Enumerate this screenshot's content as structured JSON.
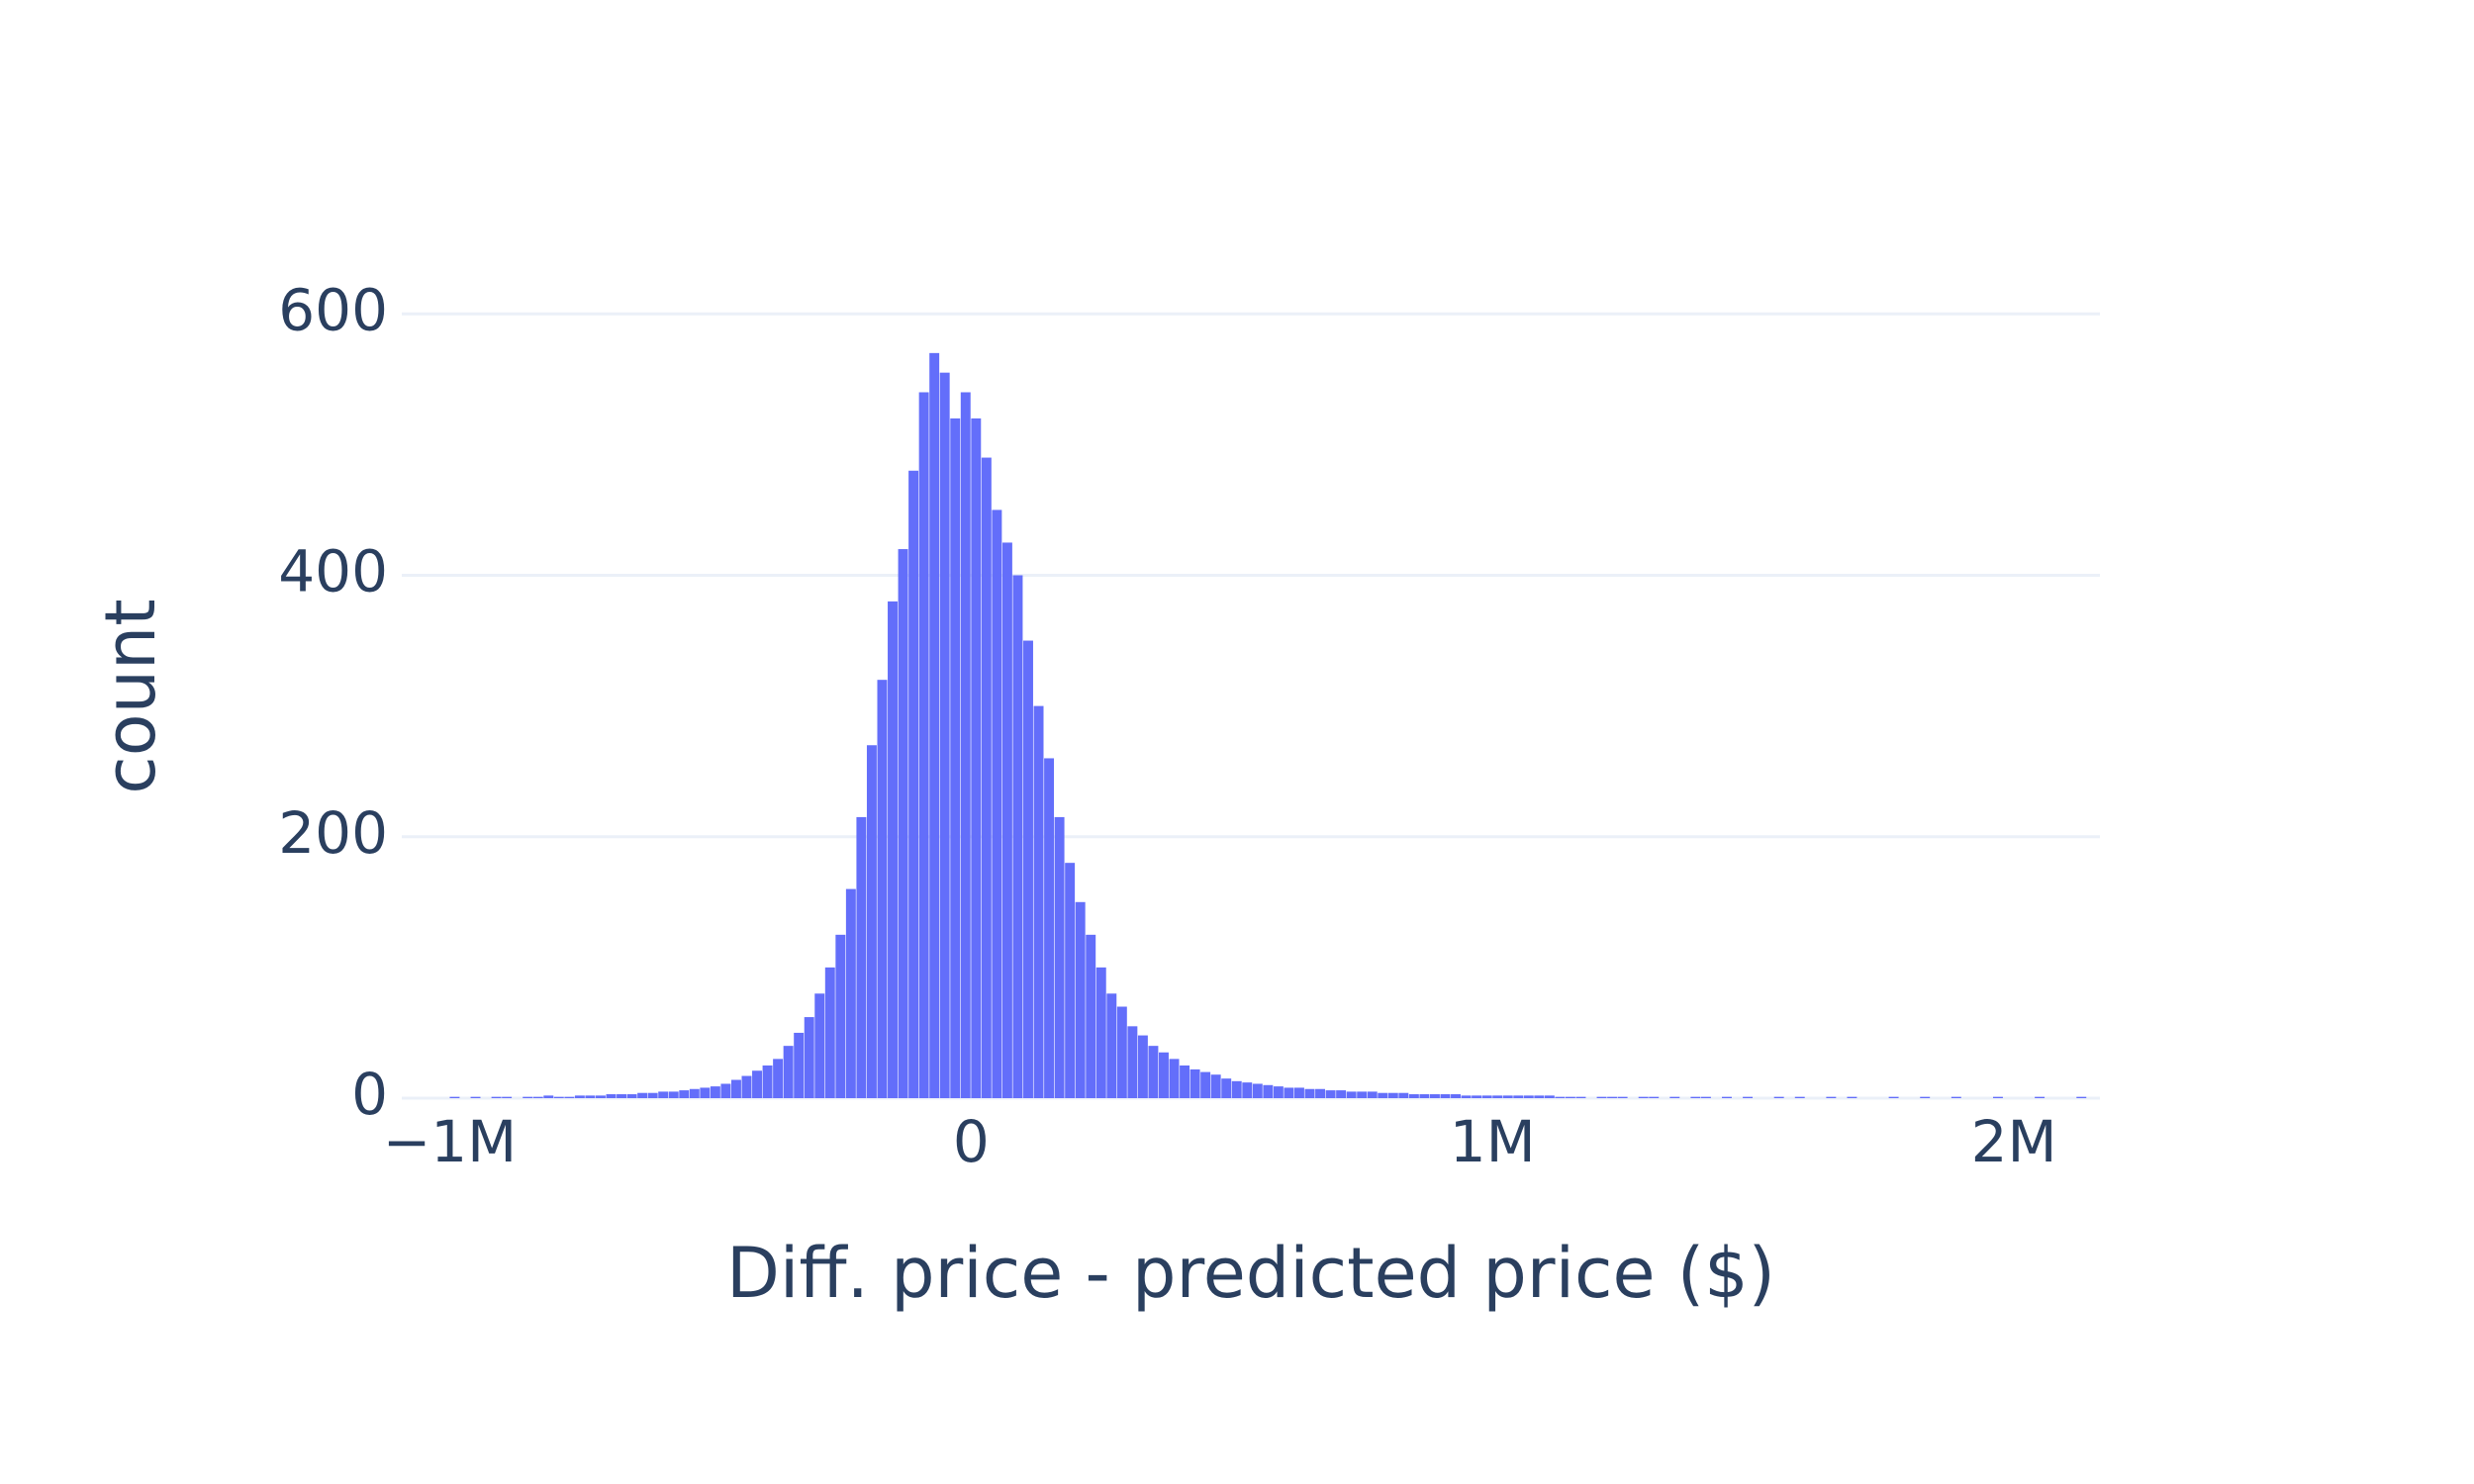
{
  "chart_data": {
    "type": "histogram",
    "x_label": "Diff. price - predicted price ($)",
    "y_label": "count",
    "color": "#636efa",
    "grid": true,
    "xlim": [
      -1092000,
      2165000
    ],
    "ylim": [
      0,
      610
    ],
    "xticks": [
      {
        "value": -1000000,
        "label": "−1M"
      },
      0,
      {
        "value": 1000000,
        "label": "1M"
      },
      {
        "value": 2000000,
        "label": "2M"
      }
    ],
    "yticks": [
      0,
      200,
      400,
      600
    ],
    "bins": [
      -1000000,
      -980000,
      -960000,
      -940000,
      -920000,
      -900000,
      -880000,
      -860000,
      -840000,
      -820000,
      -800000,
      -780000,
      -760000,
      -740000,
      -720000,
      -700000,
      -680000,
      -660000,
      -640000,
      -620000,
      -600000,
      -580000,
      -560000,
      -540000,
      -520000,
      -500000,
      -480000,
      -460000,
      -440000,
      -420000,
      -400000,
      -380000,
      -360000,
      -340000,
      -320000,
      -300000,
      -280000,
      -260000,
      -240000,
      -220000,
      -200000,
      -180000,
      -160000,
      -140000,
      -120000,
      -100000,
      -80000,
      -60000,
      -40000,
      -20000,
      0,
      20000,
      40000,
      60000,
      80000,
      100000,
      120000,
      140000,
      160000,
      180000,
      200000,
      220000,
      240000,
      260000,
      280000,
      300000,
      320000,
      340000,
      360000,
      380000,
      400000,
      420000,
      440000,
      460000,
      480000,
      500000,
      520000,
      540000,
      560000,
      580000,
      600000,
      620000,
      640000,
      660000,
      680000,
      700000,
      720000,
      740000,
      760000,
      780000,
      800000,
      820000,
      840000,
      860000,
      880000,
      900000,
      920000,
      940000,
      960000,
      980000,
      1000000,
      1020000,
      1040000,
      1060000,
      1080000,
      1100000,
      1120000,
      1140000,
      1160000,
      1180000,
      1200000,
      1220000,
      1240000,
      1260000,
      1280000,
      1300000,
      1320000,
      1340000,
      1360000,
      1380000,
      1400000,
      1420000,
      1440000,
      1460000,
      1480000,
      1500000,
      1520000,
      1540000,
      1560000,
      1580000,
      1600000,
      1620000,
      1640000,
      1660000,
      1680000,
      1700000,
      1720000,
      1740000,
      1760000,
      1780000,
      1800000,
      1820000,
      1840000,
      1860000,
      1880000,
      1900000,
      1920000,
      1940000,
      1960000,
      1980000,
      2000000,
      2020000,
      2040000,
      2060000,
      2080000,
      2100000,
      2120000,
      2140000,
      2160000
    ],
    "values": [
      1,
      0,
      1,
      0,
      1,
      1,
      0,
      1,
      1,
      2,
      1,
      1,
      2,
      2,
      2,
      3,
      3,
      3,
      4,
      4,
      5,
      5,
      6,
      7,
      8,
      9,
      11,
      14,
      17,
      21,
      25,
      30,
      40,
      50,
      62,
      80,
      100,
      125,
      160,
      215,
      270,
      320,
      380,
      420,
      480,
      540,
      570,
      555,
      520,
      540,
      520,
      490,
      450,
      425,
      400,
      350,
      300,
      260,
      215,
      180,
      150,
      125,
      100,
      80,
      70,
      55,
      48,
      40,
      35,
      30,
      25,
      22,
      20,
      18,
      15,
      13,
      12,
      11,
      10,
      9,
      8,
      8,
      7,
      7,
      6,
      6,
      5,
      5,
      5,
      4,
      4,
      4,
      3,
      3,
      3,
      3,
      3,
      2,
      2,
      2,
      2,
      2,
      2,
      2,
      2,
      2,
      1,
      1,
      1,
      0,
      1,
      1,
      1,
      0,
      1,
      1,
      0,
      1,
      0,
      1,
      1,
      0,
      1,
      0,
      1,
      0,
      0,
      1,
      0,
      1,
      0,
      0,
      1,
      0,
      1,
      0,
      0,
      0,
      1,
      0,
      0,
      1,
      0,
      0,
      1,
      0,
      0,
      0,
      1,
      0,
      0,
      0,
      1,
      0,
      0,
      0,
      1,
      0
    ]
  }
}
